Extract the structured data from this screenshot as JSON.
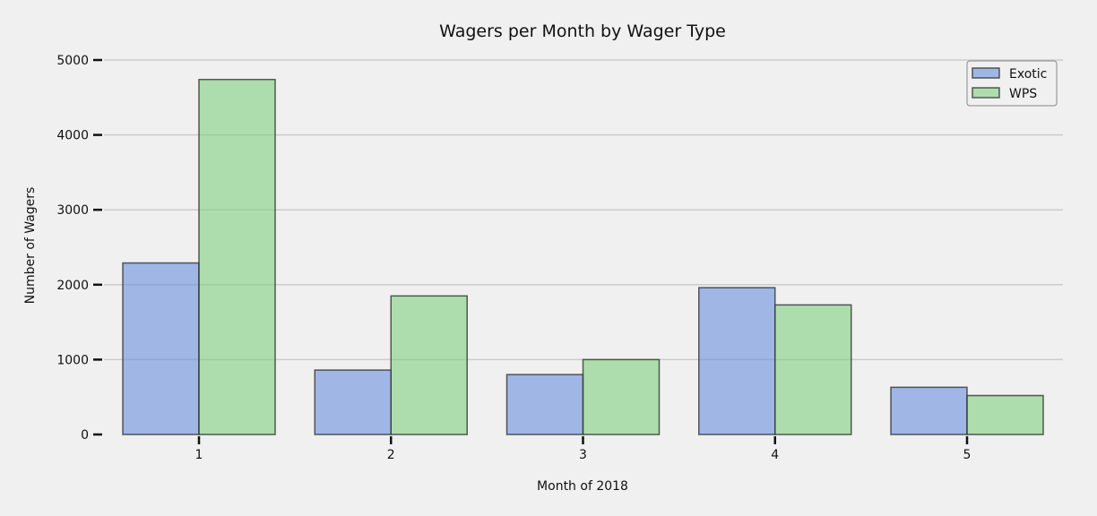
{
  "chart_data": {
    "type": "bar",
    "title": "Wagers per Month by Wager Type",
    "xlabel": "Month of 2018",
    "ylabel": "Number of Wagers",
    "categories": [
      "1",
      "2",
      "3",
      "4",
      "5"
    ],
    "series": [
      {
        "name": "Exotic",
        "values": [
          2290,
          860,
          800,
          1960,
          630
        ],
        "color": "#6a8fdc"
      },
      {
        "name": "WPS",
        "values": [
          4740,
          1850,
          1000,
          1730,
          520
        ],
        "color": "#80d080"
      }
    ],
    "ylim": [
      0,
      5000
    ],
    "yticks": [
      0,
      1000,
      2000,
      3000,
      4000,
      5000
    ],
    "grid": "horizontal",
    "legend_position": "top-right"
  }
}
